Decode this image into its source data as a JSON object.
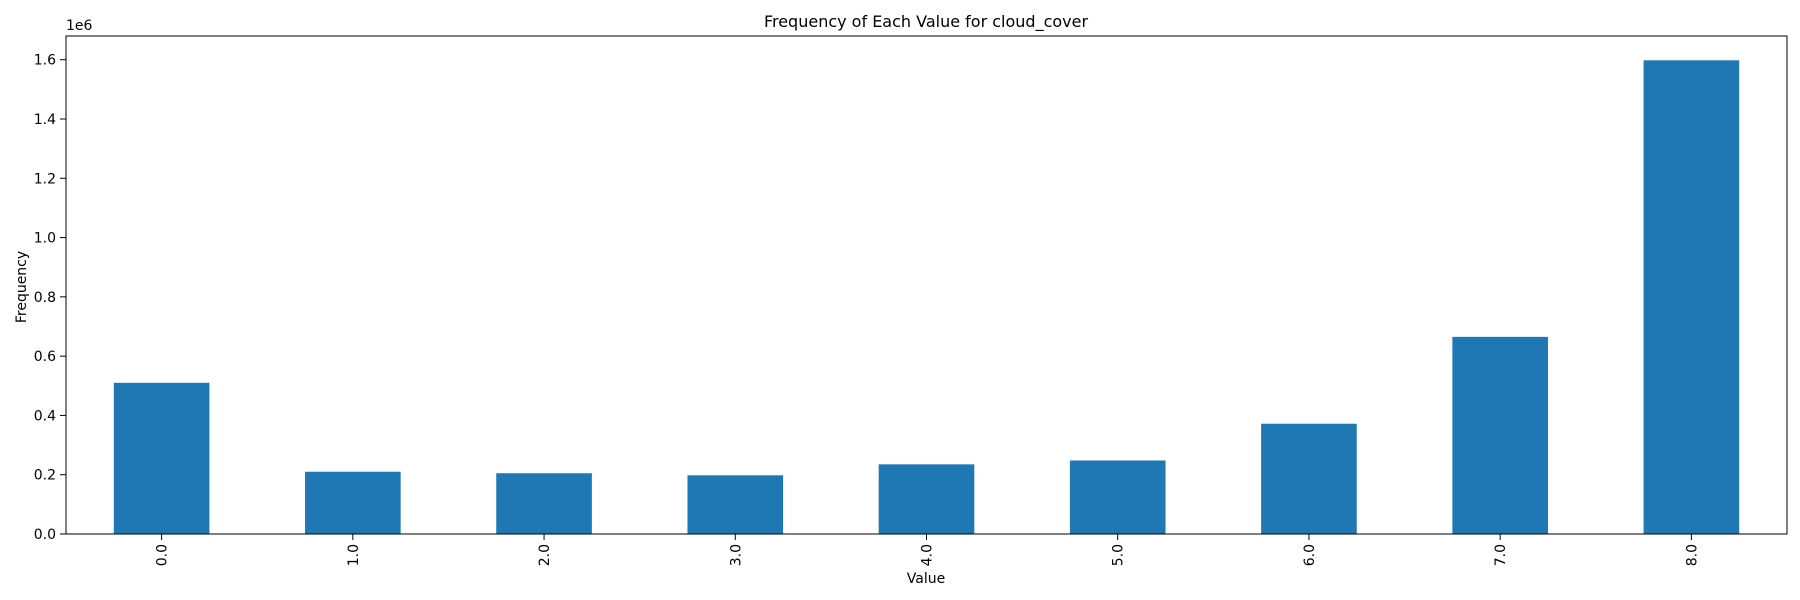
{
  "chart_data": {
    "type": "bar",
    "title": "Frequency of Each Value for cloud_cover",
    "xlabel": "Value",
    "ylabel": "Frequency",
    "y_scale_note": "1e6",
    "categories": [
      "0.0",
      "1.0",
      "2.0",
      "3.0",
      "4.0",
      "5.0",
      "6.0",
      "7.0",
      "8.0"
    ],
    "values": [
      510000,
      210000,
      205000,
      198000,
      235000,
      248000,
      372000,
      665000,
      1598000
    ],
    "ylim": [
      0,
      1680000
    ],
    "yticks": [
      0,
      200000,
      400000,
      600000,
      800000,
      1000000,
      1200000,
      1400000,
      1600000
    ],
    "ytick_labels": [
      "0.0",
      "0.2",
      "0.4",
      "0.6",
      "0.8",
      "1.0",
      "1.2",
      "1.4",
      "1.6"
    ],
    "grid": false,
    "bar_color": "#1f77b4"
  }
}
